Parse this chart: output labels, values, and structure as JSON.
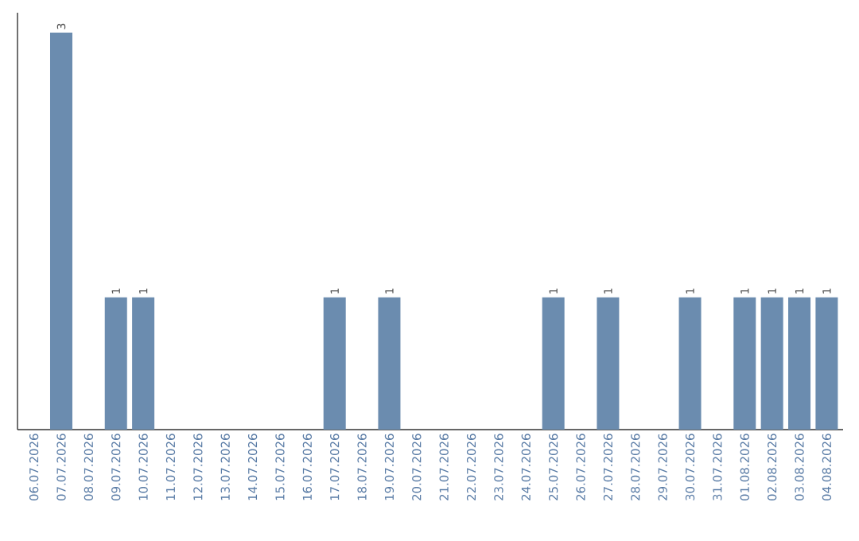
{
  "chart_data": {
    "type": "bar",
    "categories": [
      "06.07.2026",
      "07.07.2026",
      "08.07.2026",
      "09.07.2026",
      "10.07.2026",
      "11.07.2026",
      "12.07.2026",
      "13.07.2026",
      "14.07.2026",
      "15.07.2026",
      "16.07.2026",
      "17.07.2026",
      "18.07.2026",
      "19.07.2026",
      "20.07.2026",
      "21.07.2026",
      "22.07.2026",
      "23.07.2026",
      "24.07.2026",
      "25.07.2026",
      "26.07.2026",
      "27.07.2026",
      "28.07.2026",
      "29.07.2026",
      "30.07.2026",
      "31.07.2026",
      "01.08.2026",
      "02.08.2026",
      "03.08.2026",
      "04.08.2026"
    ],
    "values": [
      0,
      3,
      0,
      1,
      1,
      0,
      0,
      0,
      0,
      0,
      0,
      1,
      0,
      1,
      0,
      0,
      0,
      0,
      0,
      1,
      0,
      1,
      0,
      0,
      1,
      0,
      1,
      1,
      1,
      1
    ],
    "value_labels": [
      null,
      "3",
      null,
      "1",
      "1",
      null,
      null,
      null,
      null,
      null,
      null,
      "1",
      null,
      "1",
      null,
      null,
      null,
      null,
      null,
      "1",
      null,
      "1",
      null,
      null,
      "1",
      null,
      "1",
      "1",
      "1",
      "1"
    ],
    "color": "#6b8caf",
    "tick_labels": "x"
  }
}
